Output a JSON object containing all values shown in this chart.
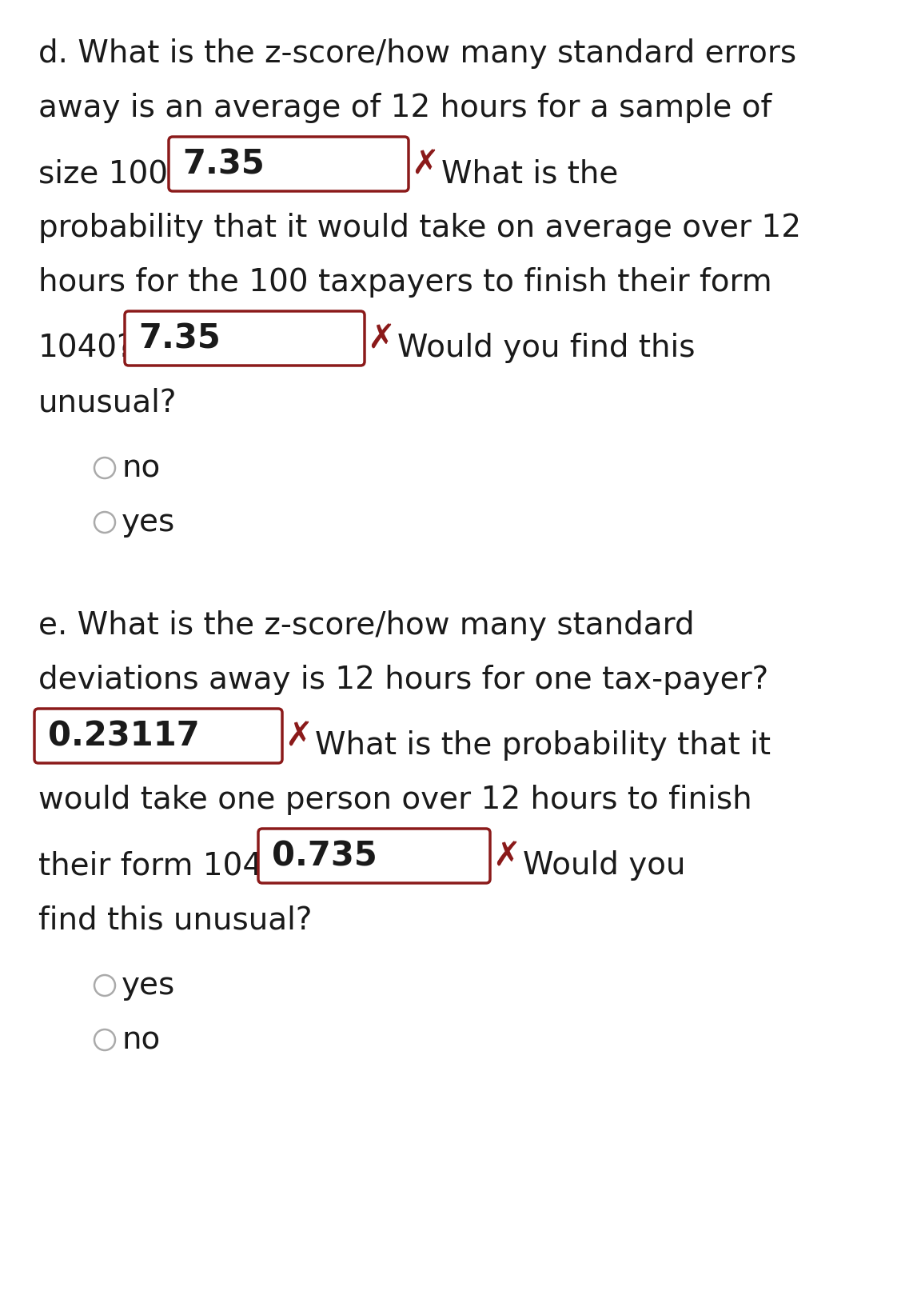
{
  "bg_color": "#ffffff",
  "text_color": "#1a1a1a",
  "box_border_color": "#8B1A1A",
  "x_color": "#8B1A1A",
  "radio_color": "#888888",
  "font_size_body": 28,
  "font_size_box": 30,
  "section_d": {
    "line1": "d. What is the z-score/how many standard errors",
    "line2": "away is an average of 12 hours for a sample of",
    "line3a": "size 100?",
    "box1_val": "7.35",
    "line3b": "What is the",
    "line4": "probability that it would take on average over 12",
    "line5": "hours for the 100 taxpayers to finish their form",
    "line6a": "1040?",
    "box2_val": "7.35",
    "line6b": "Would you find this",
    "line7": "unusual?",
    "radio1": "no",
    "radio2": "yes"
  },
  "section_e": {
    "line1": "e. What is the z-score/how many standard",
    "line2": "deviations away is 12 hours for one tax-payer?",
    "box1_val": "0.23117",
    "line3b": "What is the probability that it",
    "line4": "would take one person over 12 hours to finish",
    "line5a": "their form 1040?",
    "box2_val": "0.735",
    "line5b": "Would you",
    "line6": "find this unusual?",
    "radio1": "yes",
    "radio2": "no"
  }
}
